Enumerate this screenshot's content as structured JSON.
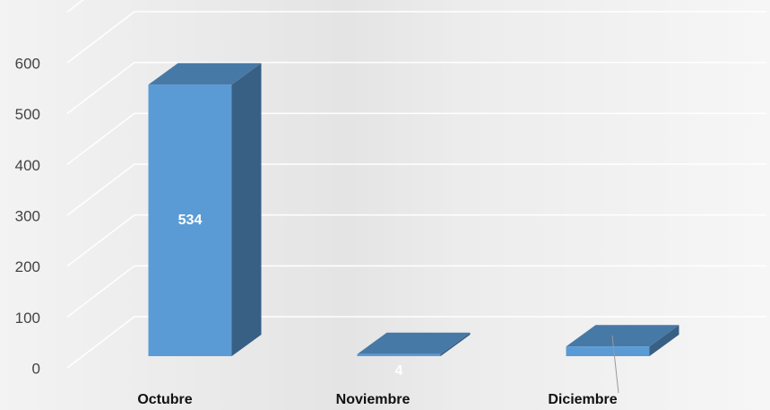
{
  "chart_data": {
    "type": "bar3d",
    "categories": [
      "Octubre",
      "Noviembre",
      "Diciembre"
    ],
    "values": [
      534,
      4,
      19
    ],
    "value_labels": [
      "534",
      "4",
      null
    ],
    "color": "#5b9bd5",
    "ylim": [
      0,
      700
    ],
    "yticks": [
      0,
      100,
      200,
      300,
      400,
      500,
      600
    ],
    "grid": true
  }
}
